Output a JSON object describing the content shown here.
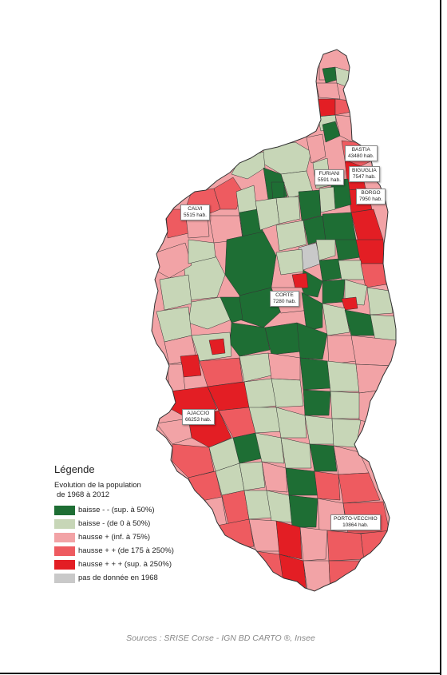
{
  "colors": {
    "baisse_forte": "#1e6e34",
    "baisse": "#c7d6b7",
    "hausse": "#f2a3a6",
    "hausse_plus": "#ee5b60",
    "hausse_forte": "#e31e24",
    "no_data": "#c9c9c9",
    "border": "#333333"
  },
  "cities": [
    {
      "name": "BASTIA",
      "pop": "43480 hab."
    },
    {
      "name": "FURIANI",
      "pop": "5591 hab."
    },
    {
      "name": "BIGUGLIA",
      "pop": "7547 hab."
    },
    {
      "name": "BORGO",
      "pop": "7950 hab."
    },
    {
      "name": "CALVI",
      "pop": "5515 hab."
    },
    {
      "name": "CORTE",
      "pop": "7280 hab."
    },
    {
      "name": "AJACCIO",
      "pop": "66253 hab."
    },
    {
      "name": "PORTO-VECCHIO",
      "pop": "10864 hab."
    }
  ],
  "legend": {
    "title": "Légende",
    "subtitle_line1": "Evolution de la population",
    "subtitle_line2": "de 1968 à 2012",
    "items": [
      {
        "label": "baisse - - (sup. à 50%)",
        "color": "#1e6e34"
      },
      {
        "label": "baisse - (de 0 à 50%)",
        "color": "#c7d6b7"
      },
      {
        "label": "hausse + (inf. à 75%)",
        "color": "#f2a3a6"
      },
      {
        "label": "hausse + + (de 175 à 250%)",
        "color": "#ee5b60"
      },
      {
        "label": "hausse + + + (sup. à 250%)",
        "color": "#e31e24"
      },
      {
        "label": "pas de donnée en 1968",
        "color": "#c9c9c9"
      }
    ]
  },
  "source": "Sources : SRISE Corse - IGN BD CARTO ®, Insee"
}
